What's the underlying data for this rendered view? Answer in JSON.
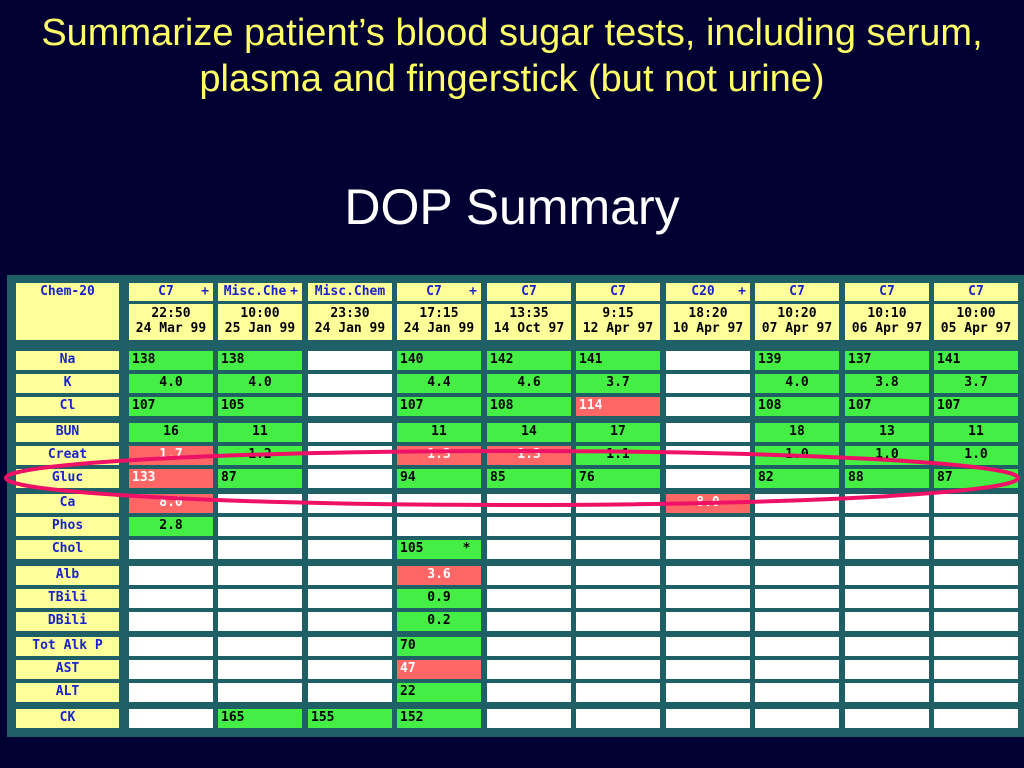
{
  "heading": "Summarize patient’s blood sugar tests, including serum, plasma and fingerstick (but not urine)",
  "subtitle": "DOP Summary",
  "table": {
    "corner": "Chem-20",
    "columns": [
      {
        "panel": "C7",
        "plus": "+",
        "time": "22:50",
        "date": "24 Mar 99"
      },
      {
        "panel": "Misc.Che",
        "plus": "+",
        "time": "10:00",
        "date": "25 Jan 99"
      },
      {
        "panel": "Misc.Chem",
        "plus": "",
        "time": "23:30",
        "date": "24 Jan 99"
      },
      {
        "panel": "C7",
        "plus": "+",
        "time": "17:15",
        "date": "24 Jan 99"
      },
      {
        "panel": "C7",
        "plus": "",
        "time": "13:35",
        "date": "14 Oct 97"
      },
      {
        "panel": "C7",
        "plus": "",
        "time": "9:15",
        "date": "12 Apr 97"
      },
      {
        "panel": "C20",
        "plus": "+",
        "time": "18:20",
        "date": "10 Apr 97"
      },
      {
        "panel": "C7",
        "plus": "",
        "time": "10:20",
        "date": "07 Apr 97"
      },
      {
        "panel": "C7",
        "plus": "",
        "time": "10:10",
        "date": "06 Apr 97"
      },
      {
        "panel": "C7",
        "plus": "",
        "time": "10:00",
        "date": "05 Apr 97"
      }
    ],
    "rows": [
      {
        "label": "Na",
        "cells": [
          {
            "v": "138",
            "s": "g",
            "a": "l"
          },
          {
            "v": "138",
            "s": "g",
            "a": "l"
          },
          {
            "v": "",
            "s": "w"
          },
          {
            "v": "140",
            "s": "g",
            "a": "l"
          },
          {
            "v": "142",
            "s": "g",
            "a": "l"
          },
          {
            "v": "141",
            "s": "g",
            "a": "l"
          },
          {
            "v": "",
            "s": "w"
          },
          {
            "v": "139",
            "s": "g",
            "a": "l"
          },
          {
            "v": "137",
            "s": "g",
            "a": "l"
          },
          {
            "v": "141",
            "s": "g",
            "a": "l"
          }
        ]
      },
      {
        "label": "K",
        "cells": [
          {
            "v": "4.0",
            "s": "g",
            "a": "c"
          },
          {
            "v": "4.0",
            "s": "g",
            "a": "c"
          },
          {
            "v": "",
            "s": "w"
          },
          {
            "v": "4.4",
            "s": "g",
            "a": "c"
          },
          {
            "v": "4.6",
            "s": "g",
            "a": "c"
          },
          {
            "v": "3.7",
            "s": "g",
            "a": "c"
          },
          {
            "v": "",
            "s": "w"
          },
          {
            "v": "4.0",
            "s": "g",
            "a": "c"
          },
          {
            "v": "3.8",
            "s": "g",
            "a": "c"
          },
          {
            "v": "3.7",
            "s": "g",
            "a": "c"
          }
        ]
      },
      {
        "label": "Cl",
        "cells": [
          {
            "v": "107",
            "s": "g",
            "a": "l"
          },
          {
            "v": "105",
            "s": "g",
            "a": "l"
          },
          {
            "v": "",
            "s": "w"
          },
          {
            "v": "107",
            "s": "g",
            "a": "l"
          },
          {
            "v": "108",
            "s": "g",
            "a": "l"
          },
          {
            "v": "114",
            "s": "r",
            "a": "l"
          },
          {
            "v": "",
            "s": "w"
          },
          {
            "v": "108",
            "s": "g",
            "a": "l"
          },
          {
            "v": "107",
            "s": "g",
            "a": "l"
          },
          {
            "v": "107",
            "s": "g",
            "a": "l"
          }
        ]
      },
      {
        "label": "BUN",
        "cells": [
          {
            "v": "16",
            "s": "g",
            "a": "c"
          },
          {
            "v": "11",
            "s": "g",
            "a": "c"
          },
          {
            "v": "",
            "s": "w"
          },
          {
            "v": "11",
            "s": "g",
            "a": "c"
          },
          {
            "v": "14",
            "s": "g",
            "a": "c"
          },
          {
            "v": "17",
            "s": "g",
            "a": "c"
          },
          {
            "v": "",
            "s": "w"
          },
          {
            "v": "18",
            "s": "g",
            "a": "c"
          },
          {
            "v": "13",
            "s": "g",
            "a": "c"
          },
          {
            "v": "11",
            "s": "g",
            "a": "c"
          }
        ]
      },
      {
        "label": "Creat",
        "cells": [
          {
            "v": "1.7",
            "s": "r",
            "a": "c"
          },
          {
            "v": "1.2",
            "s": "g",
            "a": "c"
          },
          {
            "v": "",
            "s": "w"
          },
          {
            "v": "1.3",
            "s": "r",
            "a": "c"
          },
          {
            "v": "1.3",
            "s": "r",
            "a": "c"
          },
          {
            "v": "1.1",
            "s": "g",
            "a": "c"
          },
          {
            "v": "",
            "s": "w"
          },
          {
            "v": "1.0",
            "s": "g",
            "a": "c"
          },
          {
            "v": "1.0",
            "s": "g",
            "a": "c"
          },
          {
            "v": "1.0",
            "s": "g",
            "a": "c"
          }
        ]
      },
      {
        "label": "Gluc",
        "cells": [
          {
            "v": "133",
            "s": "r",
            "a": "l"
          },
          {
            "v": "87",
            "s": "g",
            "a": "l"
          },
          {
            "v": "",
            "s": "w"
          },
          {
            "v": "94",
            "s": "g",
            "a": "l"
          },
          {
            "v": "85",
            "s": "g",
            "a": "l"
          },
          {
            "v": "76",
            "s": "g",
            "a": "l"
          },
          {
            "v": "",
            "s": "w"
          },
          {
            "v": "82",
            "s": "g",
            "a": "l"
          },
          {
            "v": "88",
            "s": "g",
            "a": "l"
          },
          {
            "v": "87",
            "s": "g",
            "a": "l"
          }
        ]
      },
      {
        "label": "Ca",
        "cells": [
          {
            "v": "8.0",
            "s": "r",
            "a": "c"
          },
          {
            "v": "",
            "s": "w"
          },
          {
            "v": "",
            "s": "w"
          },
          {
            "v": "",
            "s": "w"
          },
          {
            "v": "",
            "s": "w"
          },
          {
            "v": "",
            "s": "w"
          },
          {
            "v": "8.0",
            "s": "r",
            "a": "c"
          },
          {
            "v": "",
            "s": "w"
          },
          {
            "v": "",
            "s": "w"
          },
          {
            "v": "",
            "s": "w"
          }
        ]
      },
      {
        "label": "Phos",
        "cells": [
          {
            "v": "2.8",
            "s": "g",
            "a": "c"
          },
          {
            "v": "",
            "s": "w"
          },
          {
            "v": "",
            "s": "w"
          },
          {
            "v": "",
            "s": "w"
          },
          {
            "v": "",
            "s": "w"
          },
          {
            "v": "",
            "s": "w"
          },
          {
            "v": "",
            "s": "w"
          },
          {
            "v": "",
            "s": "w"
          },
          {
            "v": "",
            "s": "w"
          },
          {
            "v": "",
            "s": "w"
          }
        ]
      },
      {
        "label": "Chol",
        "cells": [
          {
            "v": "",
            "s": "w"
          },
          {
            "v": "",
            "s": "w"
          },
          {
            "v": "",
            "s": "w"
          },
          {
            "v": "105     *",
            "s": "g",
            "a": "l"
          },
          {
            "v": "",
            "s": "w"
          },
          {
            "v": "",
            "s": "w"
          },
          {
            "v": "",
            "s": "w"
          },
          {
            "v": "",
            "s": "w"
          },
          {
            "v": "",
            "s": "w"
          },
          {
            "v": "",
            "s": "w"
          }
        ]
      },
      {
        "label": "Alb",
        "cells": [
          {
            "v": "",
            "s": "w"
          },
          {
            "v": "",
            "s": "w"
          },
          {
            "v": "",
            "s": "w"
          },
          {
            "v": "3.6",
            "s": "r",
            "a": "c"
          },
          {
            "v": "",
            "s": "w"
          },
          {
            "v": "",
            "s": "w"
          },
          {
            "v": "",
            "s": "w"
          },
          {
            "v": "",
            "s": "w"
          },
          {
            "v": "",
            "s": "w"
          },
          {
            "v": "",
            "s": "w"
          }
        ]
      },
      {
        "label": "TBili",
        "cells": [
          {
            "v": "",
            "s": "w"
          },
          {
            "v": "",
            "s": "w"
          },
          {
            "v": "",
            "s": "w"
          },
          {
            "v": "0.9",
            "s": "g",
            "a": "c"
          },
          {
            "v": "",
            "s": "w"
          },
          {
            "v": "",
            "s": "w"
          },
          {
            "v": "",
            "s": "w"
          },
          {
            "v": "",
            "s": "w"
          },
          {
            "v": "",
            "s": "w"
          },
          {
            "v": "",
            "s": "w"
          }
        ]
      },
      {
        "label": "DBili",
        "cells": [
          {
            "v": "",
            "s": "w"
          },
          {
            "v": "",
            "s": "w"
          },
          {
            "v": "",
            "s": "w"
          },
          {
            "v": "0.2",
            "s": "g",
            "a": "c"
          },
          {
            "v": "",
            "s": "w"
          },
          {
            "v": "",
            "s": "w"
          },
          {
            "v": "",
            "s": "w"
          },
          {
            "v": "",
            "s": "w"
          },
          {
            "v": "",
            "s": "w"
          },
          {
            "v": "",
            "s": "w"
          }
        ]
      },
      {
        "label": "Tot Alk P",
        "cells": [
          {
            "v": "",
            "s": "w"
          },
          {
            "v": "",
            "s": "w"
          },
          {
            "v": "",
            "s": "w"
          },
          {
            "v": "70",
            "s": "g",
            "a": "l"
          },
          {
            "v": "",
            "s": "w"
          },
          {
            "v": "",
            "s": "w"
          },
          {
            "v": "",
            "s": "w"
          },
          {
            "v": "",
            "s": "w"
          },
          {
            "v": "",
            "s": "w"
          },
          {
            "v": "",
            "s": "w"
          }
        ]
      },
      {
        "label": "AST",
        "cells": [
          {
            "v": "",
            "s": "w"
          },
          {
            "v": "",
            "s": "w"
          },
          {
            "v": "",
            "s": "w"
          },
          {
            "v": "47",
            "s": "r",
            "a": "l"
          },
          {
            "v": "",
            "s": "w"
          },
          {
            "v": "",
            "s": "w"
          },
          {
            "v": "",
            "s": "w"
          },
          {
            "v": "",
            "s": "w"
          },
          {
            "v": "",
            "s": "w"
          },
          {
            "v": "",
            "s": "w"
          }
        ]
      },
      {
        "label": "ALT",
        "cells": [
          {
            "v": "",
            "s": "w"
          },
          {
            "v": "",
            "s": "w"
          },
          {
            "v": "",
            "s": "w"
          },
          {
            "v": "22",
            "s": "g",
            "a": "l"
          },
          {
            "v": "",
            "s": "w"
          },
          {
            "v": "",
            "s": "w"
          },
          {
            "v": "",
            "s": "w"
          },
          {
            "v": "",
            "s": "w"
          },
          {
            "v": "",
            "s": "w"
          },
          {
            "v": "",
            "s": "w"
          }
        ]
      },
      {
        "label": "CK",
        "cells": [
          {
            "v": "",
            "s": "w"
          },
          {
            "v": "165",
            "s": "g",
            "a": "l"
          },
          {
            "v": "155",
            "s": "g",
            "a": "l"
          },
          {
            "v": "152",
            "s": "g",
            "a": "l"
          },
          {
            "v": "",
            "s": "w"
          },
          {
            "v": "",
            "s": "w"
          },
          {
            "v": "",
            "s": "w"
          },
          {
            "v": "",
            "s": "w"
          },
          {
            "v": "",
            "s": "w"
          },
          {
            "v": "",
            "s": "w"
          }
        ]
      }
    ]
  },
  "highlight": {
    "row": "Gluc",
    "color": "#ee1166"
  }
}
